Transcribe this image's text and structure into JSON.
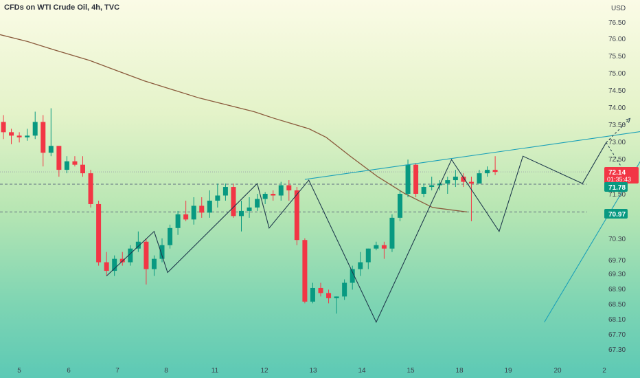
{
  "title": "CFDs on WTI Crude Oil, 4h, TVC",
  "currency": "USD",
  "price_tag": {
    "value": "72.14",
    "countdown": "01:35:43",
    "color": "#f23645"
  },
  "level_tags": [
    {
      "value": "71.78",
      "color": "#089981"
    },
    {
      "value": "70.97",
      "color": "#089981"
    }
  ],
  "colors": {
    "up": "#089981",
    "down": "#f23645",
    "ma": "#8a5a3c",
    "trend": "#1aa0b8",
    "zigzag": "#1f3a4d"
  },
  "chart_data": {
    "type": "candlestick",
    "y_ticks": [
      "76.50",
      "76.00",
      "75.50",
      "75.00",
      "74.50",
      "74.00",
      "73.50",
      "73.00",
      "72.50",
      "71.50",
      "70.30",
      "69.70",
      "69.30",
      "68.90",
      "68.50",
      "68.10",
      "67.70",
      "67.30"
    ],
    "x_ticks": [
      "5",
      "6",
      "7",
      "8",
      "11",
      "12",
      "13",
      "14",
      "15",
      "18",
      "19",
      "20",
      "2"
    ],
    "ohlc": [
      [
        73.6,
        73.8,
        73.1,
        73.3
      ],
      [
        73.3,
        73.4,
        72.95,
        73.2
      ],
      [
        73.2,
        73.3,
        73.0,
        73.15
      ],
      [
        73.15,
        73.4,
        73.05,
        73.2
      ],
      [
        73.2,
        73.9,
        73.1,
        73.6
      ],
      [
        73.6,
        73.8,
        72.3,
        72.7
      ],
      [
        72.7,
        74.0,
        72.6,
        72.9
      ],
      [
        72.9,
        72.9,
        72.0,
        72.2
      ],
      [
        72.2,
        72.6,
        72.1,
        72.45
      ],
      [
        72.45,
        72.6,
        72.3,
        72.35
      ],
      [
        72.35,
        72.6,
        72.0,
        72.1
      ],
      [
        72.1,
        72.2,
        71.1,
        71.2
      ],
      [
        71.2,
        71.3,
        69.4,
        69.5
      ],
      [
        69.5,
        69.8,
        69.1,
        69.25
      ],
      [
        69.25,
        69.7,
        69.1,
        69.6
      ],
      [
        69.6,
        69.8,
        69.4,
        69.5
      ],
      [
        69.5,
        70.0,
        69.4,
        69.9
      ],
      [
        69.9,
        70.4,
        69.8,
        70.1
      ],
      [
        70.1,
        70.2,
        68.85,
        69.3
      ],
      [
        69.3,
        69.7,
        69.1,
        69.6
      ],
      [
        69.6,
        70.2,
        69.5,
        70.0
      ],
      [
        70.0,
        70.6,
        69.9,
        70.5
      ],
      [
        70.5,
        71.0,
        70.3,
        70.9
      ],
      [
        70.9,
        71.3,
        70.7,
        70.75
      ],
      [
        70.75,
        71.4,
        70.6,
        71.15
      ],
      [
        71.15,
        71.4,
        70.8,
        70.95
      ],
      [
        70.95,
        71.6,
        70.8,
        71.3
      ],
      [
        71.3,
        71.8,
        71.1,
        71.45
      ],
      [
        71.45,
        71.8,
        71.3,
        71.7
      ],
      [
        71.7,
        71.8,
        70.8,
        70.85
      ],
      [
        70.85,
        71.3,
        70.4,
        71.0
      ],
      [
        71.0,
        71.4,
        70.8,
        71.1
      ],
      [
        71.1,
        71.5,
        71.0,
        71.35
      ],
      [
        71.35,
        71.55,
        71.2,
        71.5
      ],
      [
        71.5,
        71.6,
        71.3,
        71.45
      ],
      [
        71.45,
        71.85,
        71.3,
        71.75
      ],
      [
        71.75,
        71.9,
        71.3,
        71.6
      ],
      [
        71.6,
        71.7,
        70.0,
        70.15
      ],
      [
        70.15,
        70.2,
        68.3,
        68.35
      ],
      [
        68.35,
        68.9,
        68.3,
        68.75
      ],
      [
        68.75,
        68.9,
        68.5,
        68.6
      ],
      [
        68.6,
        68.7,
        68.3,
        68.45
      ],
      [
        68.45,
        68.5,
        68.0,
        68.5
      ],
      [
        68.5,
        69.0,
        68.4,
        68.9
      ],
      [
        68.9,
        69.4,
        68.7,
        69.3
      ],
      [
        69.3,
        69.8,
        69.1,
        69.5
      ],
      [
        69.5,
        69.9,
        69.3,
        69.9
      ],
      [
        69.9,
        70.1,
        69.85,
        70.0
      ],
      [
        70.0,
        70.1,
        69.6,
        69.9
      ],
      [
        69.9,
        70.9,
        69.8,
        70.8
      ],
      [
        70.8,
        71.6,
        70.7,
        71.5
      ],
      [
        71.5,
        72.5,
        71.4,
        72.35
      ],
      [
        72.35,
        72.4,
        71.4,
        71.5
      ],
      [
        71.5,
        71.8,
        71.4,
        71.7
      ],
      [
        71.7,
        72.0,
        71.6,
        71.75
      ],
      [
        71.75,
        71.9,
        71.6,
        71.8
      ],
      [
        71.8,
        72.0,
        71.5,
        71.9
      ],
      [
        71.9,
        72.2,
        71.7,
        72.0
      ],
      [
        72.0,
        72.1,
        71.7,
        71.85
      ],
      [
        71.85,
        72.0,
        70.7,
        71.8
      ],
      [
        71.8,
        72.2,
        71.8,
        72.1
      ],
      [
        72.1,
        72.3,
        72.0,
        72.2
      ],
      [
        72.2,
        72.6,
        72.05,
        72.14
      ]
    ],
    "moving_average": [
      76.15,
      75.95,
      75.7,
      75.4,
      75.1,
      74.8,
      74.55,
      74.3,
      74.1,
      73.9,
      73.7,
      73.55,
      73.4,
      73.15,
      72.6,
      72.0,
      71.5,
      71.1,
      70.97
    ],
    "horizontal_levels": [
      72.14,
      71.78,
      70.97
    ],
    "trendlines": [
      {
        "from": [
          68.2,
          67.75
        ],
        "to": [
          84.3,
          74.0
        ]
      },
      {
        "from": [
          38.0,
          71.92
        ],
        "to": [
          84.3,
          73.45
        ]
      }
    ],
    "zigzag": [
      [
        13,
        69.1
      ],
      [
        19,
        70.4
      ],
      [
        20.7,
        69.2
      ],
      [
        32,
        71.8
      ],
      [
        33.5,
        70.5
      ],
      [
        38.5,
        71.9
      ],
      [
        47,
        67.75
      ],
      [
        56.5,
        72.5
      ],
      [
        62.5,
        70.4
      ],
      [
        65.5,
        72.6
      ],
      [
        73,
        71.8
      ],
      [
        76,
        73.0
      ]
    ],
    "projection_up": [
      [
        76,
        73.0
      ],
      [
        79,
        73.7
      ]
    ],
    "projection_down": [
      [
        76,
        73.0
      ],
      [
        79,
        71.88
      ]
    ]
  }
}
